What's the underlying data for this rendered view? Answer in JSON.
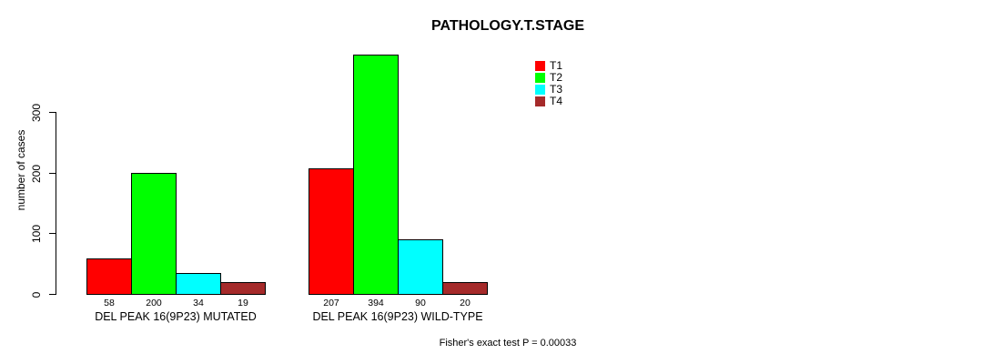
{
  "chart_data": {
    "type": "bar",
    "title": "PATHOLOGY.T.STAGE",
    "xlabel": "",
    "ylabel": "number of cases",
    "ylim": [
      0,
      300
    ],
    "yticks": [
      0,
      100,
      200,
      300
    ],
    "grid": false,
    "legend_position": "top-right-inside",
    "categories": [
      "DEL PEAK 16(9P23) MUTATED",
      "DEL PEAK 16(9P23) WILD-TYPE"
    ],
    "series": [
      {
        "name": "T1",
        "color": "#FF0000",
        "values": [
          58,
          207
        ]
      },
      {
        "name": "T2",
        "color": "#00FF00",
        "values": [
          200,
          394
        ]
      },
      {
        "name": "T3",
        "color": "#00FFFF",
        "values": [
          34,
          90
        ]
      },
      {
        "name": "T4",
        "color": "#A52A2A",
        "values": [
          19,
          20
        ]
      }
    ],
    "bar_value_labels": [
      [
        "58",
        "200",
        "34",
        "19"
      ],
      [
        "207",
        "394",
        "90",
        "20"
      ]
    ],
    "annotation": "Fisher's exact test P = 0.00033"
  },
  "colors": {
    "background": "#FFFFFF",
    "axis": "#000000",
    "bar_border": "#000000"
  }
}
